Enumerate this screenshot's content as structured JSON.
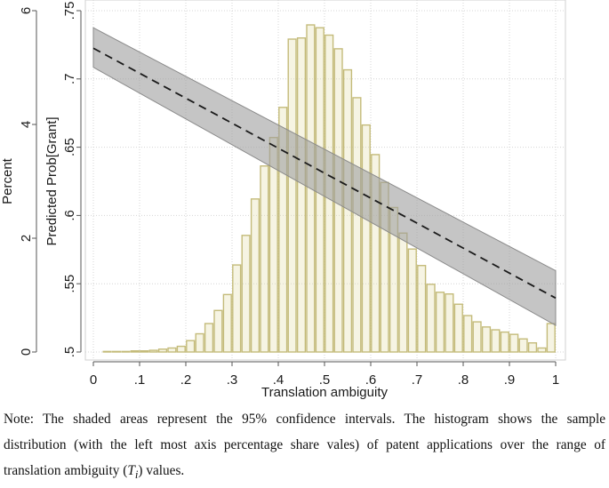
{
  "chart_data": {
    "type": "bar",
    "xlabel": "Translation ambiguity",
    "ylabel_left": "Percent",
    "ylabel_right": "Predicted Prob[Grant]",
    "xlim": [
      0,
      1
    ],
    "x_ticks": [
      "0",
      ".1",
      ".2",
      ".3",
      ".4",
      ".5",
      ".6",
      ".7",
      ".8",
      ".9",
      "1"
    ],
    "ylim_left": [
      0,
      6
    ],
    "y_ticks_left": [
      "0",
      "2",
      "4",
      "6"
    ],
    "ylim_right": [
      0.5,
      0.75
    ],
    "y_ticks_right": [
      ".5",
      ".55",
      ".6",
      ".65",
      ".7",
      ".75"
    ],
    "grid": true,
    "histogram": {
      "name": "Percent",
      "bin_width": 0.02,
      "color": "#e6e0b0",
      "edge_color": "#c4bb7a",
      "x": [
        0.03,
        0.05,
        0.07,
        0.09,
        0.11,
        0.13,
        0.15,
        0.17,
        0.19,
        0.21,
        0.23,
        0.25,
        0.27,
        0.29,
        0.31,
        0.33,
        0.35,
        0.37,
        0.39,
        0.41,
        0.43,
        0.45,
        0.47,
        0.49,
        0.51,
        0.53,
        0.55,
        0.57,
        0.59,
        0.61,
        0.63,
        0.65,
        0.67,
        0.69,
        0.71,
        0.73,
        0.75,
        0.77,
        0.79,
        0.81,
        0.83,
        0.85,
        0.87,
        0.89,
        0.91,
        0.93,
        0.95,
        0.97,
        0.99
      ],
      "values": [
        0.01,
        0.01,
        0.01,
        0.02,
        0.02,
        0.03,
        0.05,
        0.07,
        0.1,
        0.2,
        0.32,
        0.5,
        0.73,
        1.01,
        1.53,
        2.05,
        2.69,
        3.27,
        3.77,
        4.3,
        5.5,
        5.52,
        5.75,
        5.7,
        5.57,
        5.33,
        4.96,
        4.47,
        3.99,
        3.47,
        2.98,
        2.54,
        2.09,
        1.81,
        1.52,
        1.19,
        1.05,
        1.02,
        0.84,
        0.64,
        0.53,
        0.44,
        0.39,
        0.35,
        0.31,
        0.23,
        0.16,
        0.07,
        0.5
      ]
    },
    "prediction": {
      "name": "Predicted Prob[Grant]",
      "style": "dashed",
      "x": [
        0,
        1
      ],
      "y": [
        0.7225,
        0.5395
      ],
      "ci_lower": [
        0.7085,
        0.5195
      ],
      "ci_upper": [
        0.7375,
        0.5595
      ],
      "ci_label": "95% confidence interval",
      "ci_color": "#9e9e9e",
      "line_color": "#1a1a1a"
    }
  },
  "note": {
    "line1": "Note: The shaded areas represent the 95% confidence intervals. The histogram shows the sample",
    "line2": "distribution (with the left most axis percentage share vales) of patent applications over the range of",
    "line3_before": "translation ambiguity (",
    "line3_math": "T",
    "line3_sub": "i",
    "line3_after": ") values."
  }
}
